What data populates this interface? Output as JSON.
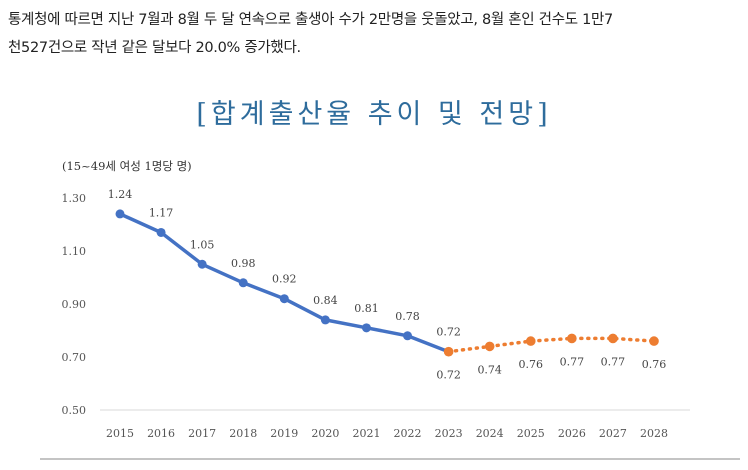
{
  "article": {
    "line1": "통계청에 따르면 지난 7월과 8월 두 달 연속으로 출생아 수가 2만명을 웃돌았고, 8월 혼인 건수도 1만7",
    "line2": "천527건으로 작년 같은 달보다 20.0% 증가했다."
  },
  "chart_data": {
    "type": "line",
    "title": "[합계출산율 추이 및 전망]",
    "unit_label": "(15~49세 여성 1명당 명)",
    "categories": [
      "2015",
      "2016",
      "2017",
      "2018",
      "2019",
      "2020",
      "2021",
      "2022",
      "2023",
      "2024",
      "2025",
      "2026",
      "2027",
      "2028"
    ],
    "series": [
      {
        "style": "solid",
        "color": "#4472c4",
        "x": [
          "2015",
          "2016",
          "2017",
          "2018",
          "2019",
          "2020",
          "2021",
          "2022",
          "2023"
        ],
        "values": [
          1.24,
          1.17,
          1.05,
          0.98,
          0.92,
          0.84,
          0.81,
          0.78,
          0.72
        ],
        "labels": [
          "1.24",
          "1.17",
          "1.05",
          "0.98",
          "0.92",
          "0.84",
          "0.81",
          "0.78",
          "0.72"
        ]
      },
      {
        "style": "dotted",
        "color": "#ed7d31",
        "x": [
          "2023",
          "2024",
          "2025",
          "2026",
          "2027",
          "2028"
        ],
        "values": [
          0.72,
          0.74,
          0.76,
          0.77,
          0.77,
          0.76
        ],
        "labels": [
          "0.72",
          "0.74",
          "0.76",
          "0.77",
          "0.77",
          "0.76"
        ]
      }
    ],
    "yticks": [
      "0.50",
      "0.70",
      "0.90",
      "1.10",
      "1.30"
    ],
    "ylim": [
      0.5,
      1.3
    ],
    "grid": false,
    "legend": "none"
  }
}
